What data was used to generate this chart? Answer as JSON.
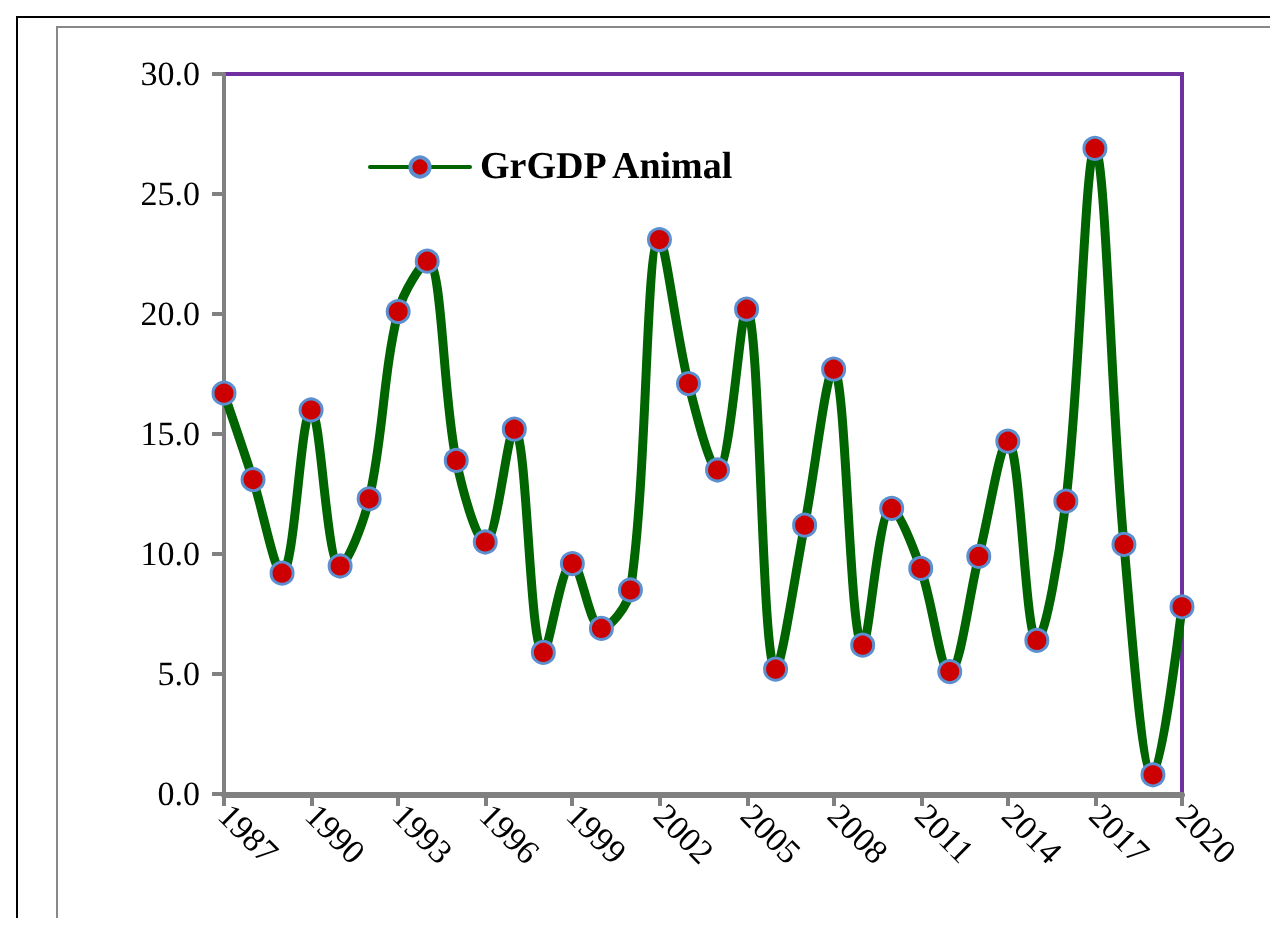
{
  "chart_data": {
    "type": "line",
    "x": [
      1987,
      1988,
      1989,
      1990,
      1991,
      1992,
      1993,
      1994,
      1995,
      1996,
      1997,
      1998,
      1999,
      2000,
      2001,
      2002,
      2003,
      2004,
      2005,
      2006,
      2007,
      2008,
      2009,
      2010,
      2011,
      2012,
      2013,
      2014,
      2015,
      2016,
      2017,
      2018,
      2019,
      2020
    ],
    "series": [
      {
        "name": "GrGDP Animal",
        "color": "#006400",
        "values": [
          16.7,
          13.1,
          9.2,
          16.0,
          9.5,
          12.3,
          20.1,
          22.2,
          13.9,
          10.5,
          15.2,
          5.9,
          9.6,
          6.9,
          8.5,
          23.1,
          17.1,
          13.5,
          20.2,
          5.2,
          11.2,
          17.7,
          6.2,
          11.9,
          9.4,
          5.1,
          9.9,
          14.7,
          6.4,
          12.2,
          26.9,
          10.4,
          0.8,
          7.8
        ]
      }
    ],
    "xlim": [
      1987,
      2020
    ],
    "xticks": [
      1987,
      1990,
      1993,
      1996,
      1999,
      2002,
      2005,
      2008,
      2011,
      2014,
      2017,
      2020
    ],
    "ylim": [
      0,
      30
    ],
    "yticks": [
      {
        "value": 0,
        "label": "0.0"
      },
      {
        "value": 5,
        "label": "5.0"
      },
      {
        "value": 10,
        "label": "10.0"
      },
      {
        "value": 15,
        "label": "15.0"
      },
      {
        "value": 20,
        "label": "20.0"
      },
      {
        "value": 25,
        "label": "25.0"
      },
      {
        "value": 30,
        "label": "30.0"
      }
    ],
    "grid": false,
    "legend": "top left",
    "marker": "circle",
    "line_style": "solid"
  }
}
